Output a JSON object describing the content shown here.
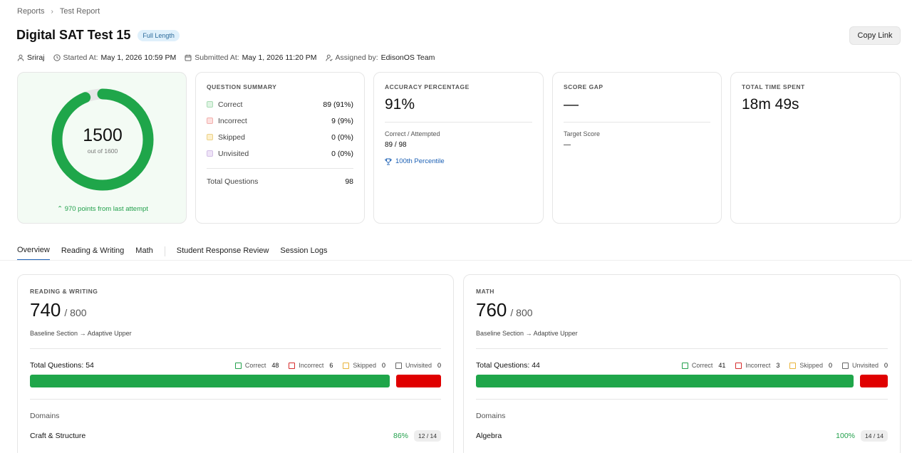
{
  "breadcrumb": {
    "root": "Reports",
    "current": "Test Report"
  },
  "header": {
    "title": "Digital SAT Test 15",
    "badge": "Full Length",
    "copy_label": "Copy Link"
  },
  "meta": {
    "student": "Sriraj",
    "started_label": "Started At:",
    "started_value": "May 1, 2026 10:59 PM",
    "submitted_label": "Submitted At:",
    "submitted_value": "May 1, 2026 11:20 PM",
    "assigned_label": "Assigned by:",
    "assigned_value": "EdisonOS Team"
  },
  "score_card": {
    "score": "1500",
    "out_of": "out of 1600",
    "progress_fraction": 0.9375,
    "improvement": "970 points from last attempt"
  },
  "question_summary": {
    "label": "Question Summary",
    "rows": [
      {
        "label": "Correct",
        "value": "89 (91%)",
        "color": "#dff3e3",
        "border": "#a9dcb5"
      },
      {
        "label": "Incorrect",
        "value": "9 (9%)",
        "color": "#fde0df",
        "border": "#f1b0ad"
      },
      {
        "label": "Skipped",
        "value": "0 (0%)",
        "color": "#fdf0cc",
        "border": "#ecd28a"
      },
      {
        "label": "Unvisited",
        "value": "0 (0%)",
        "color": "#efe4f7",
        "border": "#d3bfe6"
      }
    ],
    "total_label": "Total Questions",
    "total_value": "98"
  },
  "accuracy": {
    "label": "Accuracy Percentage",
    "value": "91%",
    "sub_label": "Correct / Attempted",
    "sub_value": "89 / 98",
    "percentile": "100th Percentile"
  },
  "score_gap": {
    "label": "Score Gap",
    "value": "—",
    "sub_label": "Target Score",
    "sub_value": "—"
  },
  "time_spent": {
    "label": "Total Time Spent",
    "value": "18m 49s"
  },
  "tabs": [
    "Overview",
    "Reading & Writing",
    "Math",
    "Student Response Review",
    "Session Logs"
  ],
  "sections": [
    {
      "label": "Reading & Writing",
      "score": "740",
      "max": "/ 800",
      "flow_from": "Baseline Section",
      "arrow": "→",
      "flow_to": "Adaptive Upper",
      "total_label": "Total Questions: 54",
      "legend": [
        {
          "label": "Correct",
          "count": "48",
          "color": "#22a04c"
        },
        {
          "label": "Incorrect",
          "count": "6",
          "color": "#d62c2c"
        },
        {
          "label": "Skipped",
          "count": "0",
          "color": "#e8b33a"
        },
        {
          "label": "Unvisited",
          "count": "0",
          "color": "#666666"
        }
      ],
      "correct_fraction": 0.889,
      "domains_label": "Domains",
      "domain": {
        "name": "Craft & Structure",
        "pct": "86%",
        "ratio": "12 / 14"
      }
    },
    {
      "label": "Math",
      "score": "760",
      "max": "/ 800",
      "flow_from": "Baseline Section",
      "arrow": "→",
      "flow_to": "Adaptive Upper",
      "total_label": "Total Questions: 44",
      "legend": [
        {
          "label": "Correct",
          "count": "41",
          "color": "#22a04c"
        },
        {
          "label": "Incorrect",
          "count": "3",
          "color": "#d62c2c"
        },
        {
          "label": "Skipped",
          "count": "0",
          "color": "#e8b33a"
        },
        {
          "label": "Unvisited",
          "count": "0",
          "color": "#666666"
        }
      ],
      "correct_fraction": 0.932,
      "domains_label": "Domains",
      "domain": {
        "name": "Algebra",
        "pct": "100%",
        "ratio": "14 / 14"
      }
    }
  ],
  "colors": {
    "correct_bar": "#1fa64a",
    "incorrect_bar": "#e00000",
    "ring": "#1fa64a",
    "ring_track": "#e6e6e6",
    "link": "#1a5fb4"
  }
}
